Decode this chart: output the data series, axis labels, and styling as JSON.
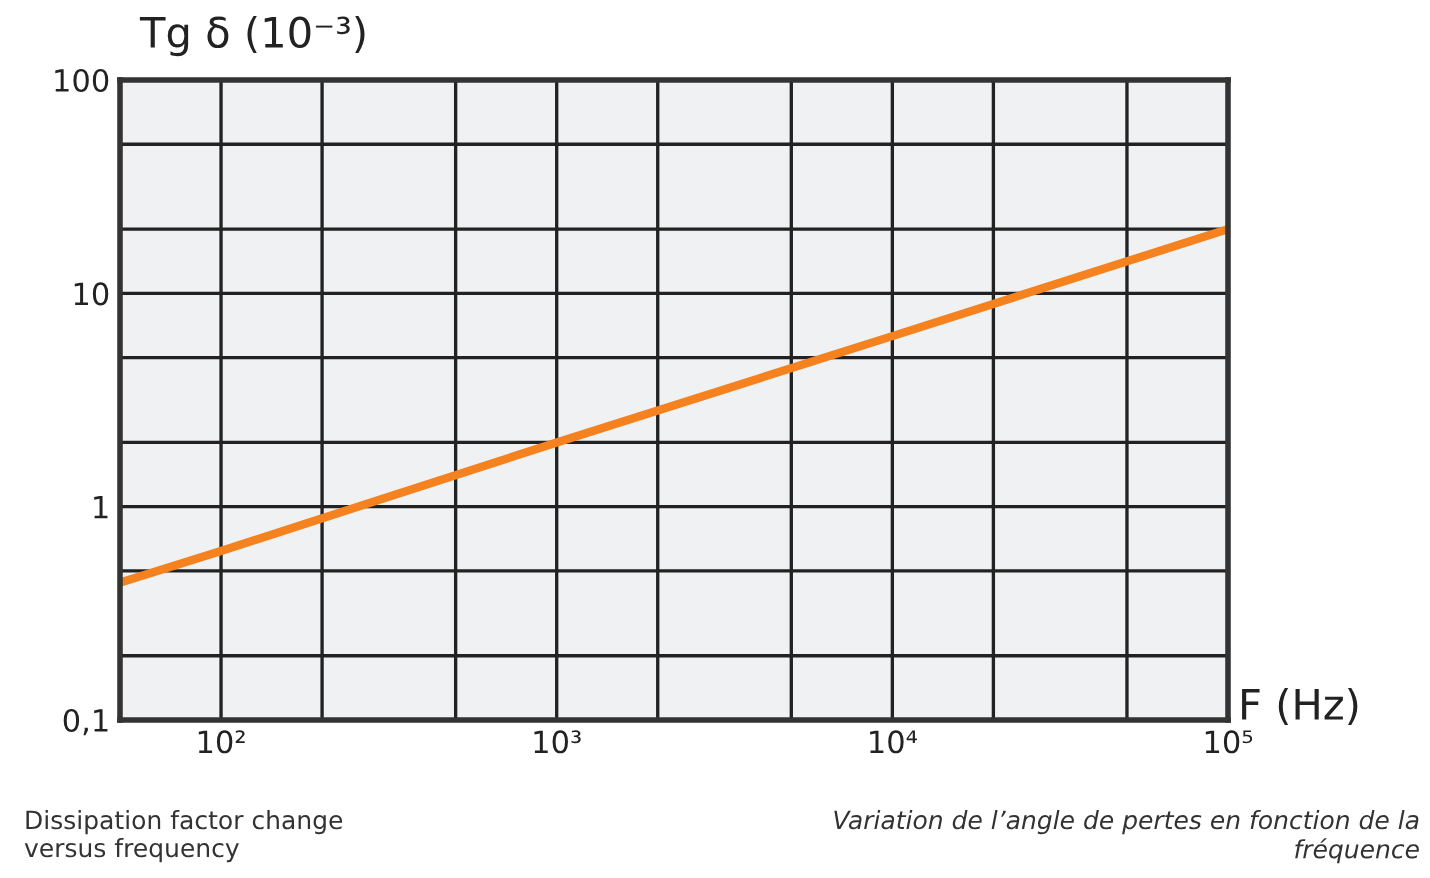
{
  "chart_data": {
    "type": "line",
    "ylabel": "Tg δ (10⁻³)",
    "xlabel": "F (Hz)",
    "log": "xy",
    "grid": true,
    "legend": false,
    "marker": "none",
    "line_style": "solid",
    "x": [
      50,
      100,
      1000,
      10000,
      100000
    ],
    "series": [
      {
        "color": "#f5821f",
        "values": [
          0.44,
          0.62,
          2,
          6.3,
          20
        ]
      }
    ],
    "xlim": [
      50,
      100000
    ],
    "xticks": [
      {
        "value": 100,
        "label": "10²"
      },
      {
        "value": 200,
        "label": null
      },
      {
        "value": 500,
        "label": null
      },
      {
        "value": 1000,
        "label": "10³"
      },
      {
        "value": 2000,
        "label": null
      },
      {
        "value": 5000,
        "label": null
      },
      {
        "value": 10000,
        "label": "10⁴"
      },
      {
        "value": 20000,
        "label": null
      },
      {
        "value": 50000,
        "label": null
      },
      {
        "value": 100000,
        "label": "10⁵"
      }
    ],
    "ylim": [
      0.1,
      100
    ],
    "yticks": [
      {
        "value": 0.1,
        "label": "0,1"
      },
      {
        "value": 0.2,
        "label": null
      },
      {
        "value": 0.5,
        "label": null
      },
      1,
      {
        "value": 2,
        "label": null
      },
      {
        "value": 5,
        "label": null
      },
      10,
      {
        "value": 20,
        "label": null
      },
      {
        "value": 50,
        "label": null
      },
      100
    ],
    "annotations": [
      "Dissipation factor change\nversus frequency",
      "Variation de l’angle de pertes en fonction de la\nfréquence"
    ]
  }
}
